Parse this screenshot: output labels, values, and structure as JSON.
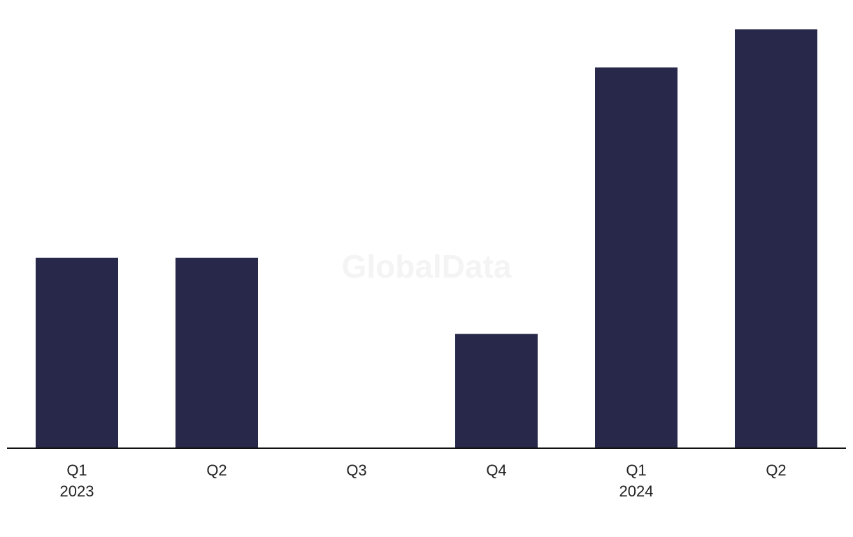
{
  "chart_data": {
    "type": "bar",
    "categories": [
      "Q1",
      "Q2",
      "Q3",
      "Q4",
      "Q1",
      "Q2"
    ],
    "periods": [
      "2023",
      null,
      null,
      null,
      "2024",
      null
    ],
    "values": [
      5,
      5,
      0,
      3,
      10,
      11
    ],
    "color": "#28284a",
    "ylim": [
      0,
      11
    ],
    "watermark": "GlobalData"
  }
}
